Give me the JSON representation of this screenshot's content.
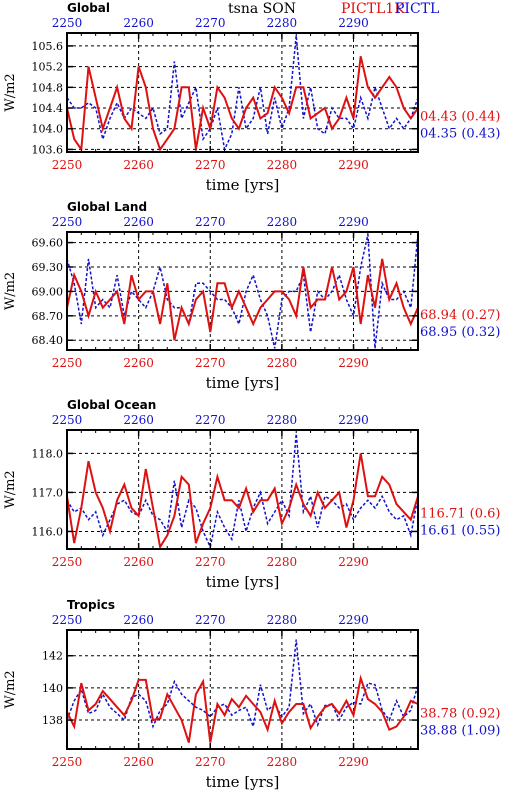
{
  "header": {
    "title": "tsna SON",
    "legend_red": "PICTL1K",
    "legend_blue": "PICTL"
  },
  "colors": {
    "red": "#dd1111",
    "blue": "#1111cc",
    "axis": "#000000",
    "grid": "#000000"
  },
  "chart_data": [
    {
      "type": "line",
      "title": "Global",
      "xlabel": "time [yrs]",
      "ylabel": "W/m2",
      "xlim": [
        2250,
        2299
      ],
      "ylim": [
        103.55,
        105.85
      ],
      "yticks": [
        103.6,
        104.0,
        104.4,
        104.8,
        105.2,
        105.6
      ],
      "ytick_labels": [
        "103.6",
        "104.0",
        "104.4",
        "104.8",
        "105.2",
        "105.6"
      ],
      "xticks": [
        2250,
        2260,
        2270,
        2280,
        2290
      ],
      "top_xticks": [
        2250,
        2260,
        2270,
        2280,
        2290
      ],
      "grid": true,
      "series": [
        {
          "name": "PICTL1K",
          "color": "red",
          "dash": false,
          "annotation": "04.43 (0.44)",
          "values": [
            104.4,
            103.8,
            103.6,
            105.2,
            104.6,
            104.0,
            104.4,
            104.8,
            104.2,
            104.0,
            105.2,
            104.8,
            104.0,
            103.6,
            103.8,
            104.0,
            104.8,
            104.8,
            103.6,
            104.4,
            104.0,
            104.8,
            104.6,
            104.2,
            104.0,
            104.4,
            104.6,
            104.2,
            104.3,
            104.8,
            104.6,
            104.3,
            104.8,
            104.8,
            104.2,
            104.3,
            104.4,
            104.0,
            104.2,
            104.6,
            104.2,
            105.4,
            104.8,
            104.6,
            104.8,
            105.0,
            104.8,
            104.4,
            104.2,
            104.4
          ]
        },
        {
          "name": "PICTL",
          "color": "blue",
          "dash": true,
          "annotation": "04.35 (0.43)",
          "values": [
            104.6,
            104.4,
            104.4,
            104.5,
            104.4,
            103.8,
            104.2,
            104.5,
            104.2,
            104.4,
            104.3,
            104.2,
            104.4,
            103.9,
            104.0,
            105.3,
            104.2,
            104.5,
            104.8,
            103.8,
            104.0,
            104.4,
            103.6,
            103.9,
            104.8,
            104.0,
            104.2,
            104.8,
            103.9,
            104.6,
            104.0,
            104.4,
            105.8,
            104.2,
            104.8,
            104.0,
            103.9,
            104.4,
            104.2,
            104.2,
            104.0,
            104.6,
            104.2,
            104.8,
            104.4,
            104.0,
            104.2,
            104.0,
            104.2,
            104.6
          ]
        }
      ]
    },
    {
      "type": "line",
      "title": "Global Land",
      "xlabel": "time [yrs]",
      "ylabel": "W/m2",
      "xlim": [
        2250,
        2299
      ],
      "ylim": [
        68.28,
        69.73
      ],
      "yticks": [
        68.4,
        68.7,
        69.0,
        69.3,
        69.6
      ],
      "ytick_labels": [
        "68.40",
        "68.70",
        "69.00",
        "69.30",
        "69.60"
      ],
      "xticks": [
        2250,
        2260,
        2270,
        2280,
        2290
      ],
      "top_xticks": [
        2250,
        2260,
        2270,
        2280,
        2290
      ],
      "grid": true,
      "series": [
        {
          "name": "PICTL1K",
          "color": "red",
          "dash": false,
          "annotation": "68.94 (0.27)",
          "values": [
            68.8,
            69.2,
            69.0,
            68.7,
            69.0,
            68.8,
            68.9,
            69.0,
            68.6,
            69.2,
            68.9,
            69.0,
            69.0,
            68.6,
            69.1,
            68.4,
            68.8,
            68.6,
            68.9,
            69.0,
            68.5,
            69.1,
            69.1,
            68.8,
            69.0,
            68.8,
            68.6,
            68.8,
            68.9,
            69.0,
            69.0,
            68.9,
            68.7,
            69.3,
            68.8,
            68.9,
            68.9,
            69.3,
            68.9,
            69.0,
            69.3,
            68.6,
            69.2,
            68.8,
            69.4,
            68.9,
            69.1,
            68.8,
            68.6,
            68.8
          ]
        },
        {
          "name": "PICTL",
          "color": "blue",
          "dash": true,
          "annotation": "68.95 (0.32)",
          "values": [
            69.4,
            69.1,
            68.6,
            69.4,
            68.8,
            68.9,
            68.8,
            69.2,
            68.7,
            69.0,
            68.9,
            68.8,
            69.0,
            69.3,
            68.9,
            68.8,
            68.8,
            68.6,
            69.1,
            69.1,
            69.0,
            68.9,
            68.9,
            68.8,
            68.6,
            69.0,
            69.2,
            68.9,
            68.7,
            68.3,
            68.9,
            69.0,
            69.0,
            69.2,
            68.5,
            69.0,
            68.9,
            69.0,
            69.2,
            68.9,
            68.7,
            69.3,
            69.7,
            68.3,
            69.1,
            68.9,
            68.9,
            69.0,
            68.8,
            69.7
          ]
        }
      ]
    },
    {
      "type": "line",
      "title": "Global Ocean",
      "xlabel": "time [yrs]",
      "ylabel": "W/m2",
      "xlim": [
        2250,
        2299
      ],
      "ylim": [
        115.55,
        118.6
      ],
      "yticks": [
        116.0,
        117.0,
        118.0
      ],
      "ytick_labels": [
        "116.0",
        "117.0",
        "118.0"
      ],
      "xticks": [
        2250,
        2260,
        2270,
        2280,
        2290
      ],
      "top_xticks": [
        2250,
        2260,
        2270,
        2280,
        2290
      ],
      "grid": true,
      "series": [
        {
          "name": "PICTL1K",
          "color": "red",
          "dash": false,
          "annotation": "116.71 (0.6)",
          "values": [
            116.9,
            115.7,
            116.6,
            117.8,
            117.0,
            116.6,
            116.0,
            116.8,
            117.2,
            116.6,
            116.4,
            117.6,
            116.6,
            115.6,
            115.9,
            116.4,
            117.4,
            117.2,
            115.7,
            116.2,
            116.6,
            117.4,
            116.8,
            116.8,
            116.6,
            117.1,
            116.5,
            116.8,
            116.8,
            117.1,
            116.2,
            116.6,
            117.2,
            116.7,
            116.4,
            117.0,
            116.6,
            116.8,
            117.0,
            116.1,
            116.8,
            118.0,
            116.9,
            116.9,
            117.4,
            117.2,
            116.7,
            116.5,
            116.3,
            116.9
          ]
        },
        {
          "name": "PICTL",
          "color": "blue",
          "dash": true,
          "annotation": "16.61 (0.55)",
          "values": [
            116.8,
            116.5,
            116.6,
            116.3,
            116.5,
            115.9,
            116.3,
            116.7,
            116.8,
            116.5,
            116.4,
            116.8,
            116.4,
            116.3,
            116.0,
            117.3,
            116.1,
            116.8,
            116.6,
            116.0,
            115.6,
            116.5,
            116.1,
            115.8,
            116.8,
            116.0,
            116.6,
            117.0,
            116.2,
            116.5,
            116.8,
            116.4,
            118.5,
            116.5,
            116.9,
            116.1,
            116.9,
            116.8,
            116.6,
            116.7,
            116.3,
            116.6,
            116.8,
            116.6,
            116.9,
            116.5,
            116.3,
            116.4,
            115.9,
            116.9
          ]
        }
      ]
    },
    {
      "type": "line",
      "title": "Tropics",
      "xlabel": "time [yrs]",
      "ylabel": "W/m2",
      "xlim": [
        2250,
        2299
      ],
      "ylim": [
        136.2,
        143.6
      ],
      "yticks": [
        138,
        140,
        142
      ],
      "ytick_labels": [
        "138",
        "140",
        "142"
      ],
      "xticks": [
        2250,
        2260,
        2270,
        2280,
        2290
      ],
      "top_xticks": [
        2250,
        2260,
        2270,
        2280,
        2290
      ],
      "grid": true,
      "series": [
        {
          "name": "PICTL1K",
          "color": "red",
          "dash": false,
          "annotation": "38.78 (0.92)",
          "values": [
            138.5,
            137.6,
            140.3,
            138.6,
            139.0,
            139.8,
            139.3,
            138.8,
            138.3,
            139.2,
            140.5,
            140.5,
            138.0,
            138.1,
            139.6,
            138.8,
            138.0,
            136.6,
            139.6,
            140.4,
            136.6,
            139.0,
            138.3,
            139.3,
            138.8,
            139.5,
            139.0,
            138.5,
            137.4,
            139.2,
            137.8,
            138.5,
            139.0,
            139.0,
            137.5,
            138.2,
            138.8,
            139.0,
            138.4,
            139.2,
            138.3,
            140.6,
            139.3,
            139.0,
            138.5,
            137.4,
            137.6,
            138.2,
            139.2,
            139.0
          ]
        },
        {
          "name": "PICTL",
          "color": "blue",
          "dash": true,
          "annotation": "38.88 (1.09)",
          "values": [
            138.0,
            139.2,
            139.9,
            138.4,
            138.6,
            139.6,
            138.8,
            138.4,
            138.0,
            139.4,
            139.6,
            139.2,
            137.6,
            138.6,
            139.0,
            140.4,
            139.6,
            139.2,
            138.8,
            138.6,
            138.2,
            138.8,
            139.0,
            138.3,
            138.6,
            138.8,
            137.6,
            140.2,
            138.6,
            139.0,
            138.2,
            138.8,
            143.0,
            138.4,
            139.0,
            137.7,
            138.9,
            139.0,
            138.0,
            138.8,
            139.1,
            139.0,
            140.3,
            140.2,
            138.6,
            138.0,
            139.2,
            138.2,
            138.6,
            140.2
          ]
        }
      ]
    }
  ]
}
